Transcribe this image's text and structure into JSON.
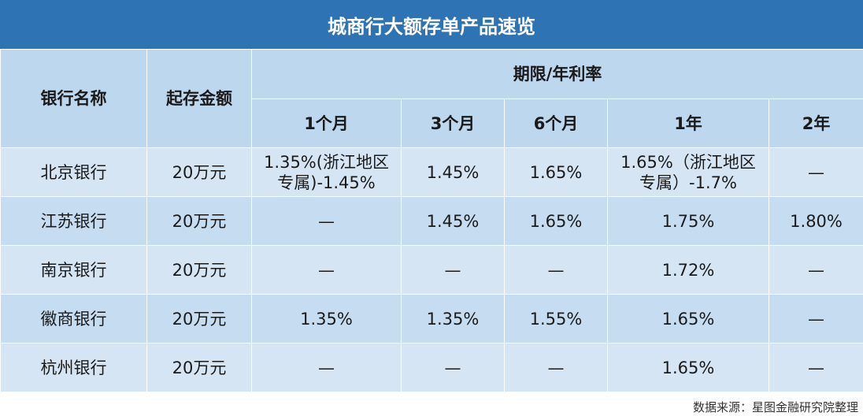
{
  "title": "城商行大额存单产品速览",
  "headers": {
    "bank": "银行名称",
    "min_amount": "起存金额",
    "term_group": "期限/年利率",
    "terms": [
      "1个月",
      "3个月",
      "6个月",
      "1年",
      "2年"
    ]
  },
  "rows": [
    {
      "bank": "北京银行",
      "amount": "20万元",
      "rates": [
        "1.35%(浙江地区专属)-1.45%",
        "1.45%",
        "1.65%",
        "1.65%（浙江地区专属）-1.7%",
        "—"
      ]
    },
    {
      "bank": "江苏银行",
      "amount": "20万元",
      "rates": [
        "—",
        "1.45%",
        "1.65%",
        "1.75%",
        "1.80%"
      ]
    },
    {
      "bank": "南京银行",
      "amount": "20万元",
      "rates": [
        "—",
        "—",
        "—",
        "1.72%",
        "—"
      ]
    },
    {
      "bank": "徽商银行",
      "amount": "20万元",
      "rates": [
        "1.35%",
        "1.35%",
        "1.55%",
        "1.65%",
        "—"
      ]
    },
    {
      "bank": "杭州银行",
      "amount": "20万元",
      "rates": [
        "—",
        "—",
        "—",
        "1.65%",
        "—"
      ]
    }
  ],
  "source": "数据来源：星图金融研究院整理",
  "colors": {
    "title_bg": "#2e74b5",
    "header_bg": "#bdd7ee",
    "row_light": "#d6e5f4",
    "row_dark": "#c6dcf0"
  }
}
